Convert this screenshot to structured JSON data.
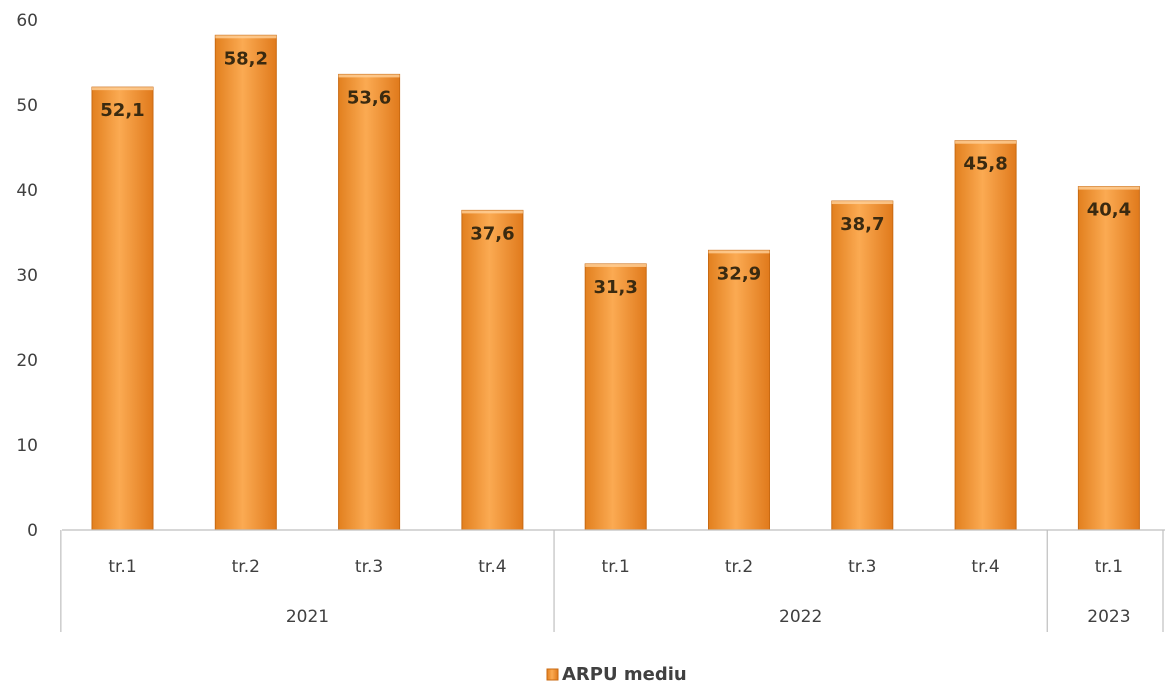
{
  "chart_data": {
    "type": "bar",
    "groups": [
      {
        "label": "2021",
        "categories": [
          "tr.1",
          "tr.2",
          "tr.3",
          "tr.4"
        ]
      },
      {
        "label": "2022",
        "categories": [
          "tr.1",
          "tr.2",
          "tr.3",
          "tr.4"
        ]
      },
      {
        "label": "2023",
        "categories": [
          "tr.1"
        ]
      }
    ],
    "categories": [
      "tr.1",
      "tr.2",
      "tr.3",
      "tr.4",
      "tr.1",
      "tr.2",
      "tr.3",
      "tr.4",
      "tr.1"
    ],
    "series": [
      {
        "name": "ARPU mediu",
        "values": [
          52.1,
          58.2,
          53.6,
          37.6,
          31.3,
          32.9,
          38.7,
          45.8,
          40.4
        ],
        "value_labels": [
          "52,1",
          "58,2",
          "53,6",
          "37,6",
          "31,3",
          "32,9",
          "38,7",
          "45,8",
          "40,4"
        ]
      }
    ],
    "ylim": [
      0,
      60
    ],
    "yticks": [
      0,
      10,
      20,
      30,
      40,
      50,
      60
    ],
    "grid": false,
    "legend_position": "bottom-center",
    "colors": {
      "bar_light": "#F9A64A",
      "bar_dark": "#E07A1C",
      "bar_edge": "#C96A12",
      "axis": "#BFBFBF"
    }
  }
}
